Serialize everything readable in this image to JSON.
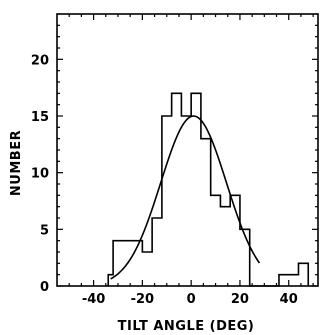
{
  "chart_data": {
    "type": "histogram",
    "xlabel": "TILT ANGLE (DEG)",
    "ylabel": "NUMBER",
    "xlim": [
      -55,
      52
    ],
    "ylim": [
      0,
      24
    ],
    "x_ticks": [
      -40,
      -20,
      0,
      20,
      40
    ],
    "x_tick_labels": [
      "-40",
      "-20",
      "0",
      "20",
      "40"
    ],
    "y_ticks": [
      0,
      5,
      10,
      15,
      20
    ],
    "y_tick_labels": [
      "0",
      "5",
      "10",
      "15",
      "20"
    ],
    "grid": false,
    "series": [
      {
        "kind": "histogram",
        "bin_edges": [
          -34,
          -32,
          -24,
          -20,
          -16,
          -12,
          -8,
          -4,
          0,
          4,
          8,
          12,
          16,
          20,
          24,
          28,
          32,
          36,
          40,
          44,
          48
        ],
        "counts": [
          1,
          4,
          4,
          3,
          6,
          15,
          17,
          15,
          17,
          13,
          8,
          7,
          8,
          5,
          0,
          0,
          0,
          1,
          1,
          2
        ]
      },
      {
        "kind": "fitted-curve",
        "shape": "gaussian",
        "mean": 1,
        "peak": 15,
        "sigma": 13.5,
        "x_range": [
          -33,
          28
        ]
      }
    ]
  }
}
